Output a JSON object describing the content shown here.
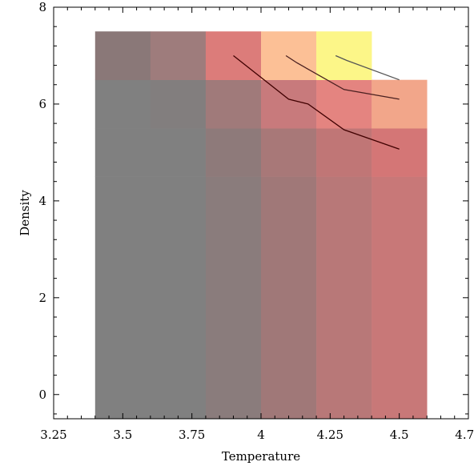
{
  "chart_data": {
    "type": "heatmap",
    "title": "",
    "xlabel": "Temperature",
    "ylabel": "Density",
    "xlim": [
      3.25,
      4.75
    ],
    "ylim": [
      -0.5,
      8
    ],
    "x_ticks": [
      "3.25",
      "3.5",
      "3.75",
      "4",
      "4.25",
      "4.5",
      "4.75"
    ],
    "x_tick_values": [
      3.25,
      3.5,
      3.75,
      4.0,
      4.25,
      4.5,
      4.75
    ],
    "y_ticks": [
      "0",
      "2",
      "4",
      "6",
      "8"
    ],
    "y_tick_values": [
      0,
      2,
      4,
      6,
      8
    ],
    "grid": false,
    "cells": [
      {
        "x0": 3.4,
        "x1": 3.6,
        "y0": -0.5,
        "y1": 4.5,
        "color": "#808080"
      },
      {
        "x0": 3.4,
        "x1": 3.6,
        "y0": 4.5,
        "y1": 5.5,
        "color": "#808080"
      },
      {
        "x0": 3.4,
        "x1": 3.6,
        "y0": 5.5,
        "y1": 6.5,
        "color": "#808080"
      },
      {
        "x0": 3.4,
        "x1": 3.6,
        "y0": 6.5,
        "y1": 7.5,
        "color": "#8a7878"
      },
      {
        "x0": 3.6,
        "x1": 3.8,
        "y0": -0.5,
        "y1": 4.5,
        "color": "#808080"
      },
      {
        "x0": 3.6,
        "x1": 3.8,
        "y0": 4.5,
        "y1": 5.5,
        "color": "#808080"
      },
      {
        "x0": 3.6,
        "x1": 3.8,
        "y0": 5.5,
        "y1": 6.5,
        "color": "#827e7e"
      },
      {
        "x0": 3.6,
        "x1": 3.8,
        "y0": 6.5,
        "y1": 7.5,
        "color": "#9e7c7c"
      },
      {
        "x0": 3.8,
        "x1": 4.0,
        "y0": -0.5,
        "y1": 4.5,
        "color": "#8a7c7c"
      },
      {
        "x0": 3.8,
        "x1": 4.0,
        "y0": 4.5,
        "y1": 5.5,
        "color": "#8e7a7a"
      },
      {
        "x0": 3.8,
        "x1": 4.0,
        "y0": 5.5,
        "y1": 6.5,
        "color": "#a07a7a"
      },
      {
        "x0": 3.8,
        "x1": 4.0,
        "y0": 6.5,
        "y1": 7.5,
        "color": "#dc7c7a"
      },
      {
        "x0": 4.0,
        "x1": 4.2,
        "y0": -0.5,
        "y1": 4.5,
        "color": "#a07878"
      },
      {
        "x0": 4.0,
        "x1": 4.2,
        "y0": 4.5,
        "y1": 5.5,
        "color": "#a87878"
      },
      {
        "x0": 4.0,
        "x1": 4.2,
        "y0": 5.5,
        "y1": 6.5,
        "color": "#c87a7c"
      },
      {
        "x0": 4.0,
        "x1": 4.2,
        "y0": 6.5,
        "y1": 7.5,
        "color": "#fcc096"
      },
      {
        "x0": 4.2,
        "x1": 4.4,
        "y0": -0.5,
        "y1": 4.5,
        "color": "#b87878"
      },
      {
        "x0": 4.2,
        "x1": 4.4,
        "y0": 4.5,
        "y1": 5.5,
        "color": "#c07676"
      },
      {
        "x0": 4.2,
        "x1": 4.4,
        "y0": 5.5,
        "y1": 6.5,
        "color": "#e48480"
      },
      {
        "x0": 4.2,
        "x1": 4.4,
        "y0": 6.5,
        "y1": 7.5,
        "color": "#fcf688"
      },
      {
        "x0": 4.4,
        "x1": 4.6,
        "y0": -0.5,
        "y1": 4.5,
        "color": "#c87878"
      },
      {
        "x0": 4.4,
        "x1": 4.6,
        "y0": 4.5,
        "y1": 5.5,
        "color": "#d47676"
      },
      {
        "x0": 4.4,
        "x1": 4.6,
        "y0": 5.5,
        "y1": 6.5,
        "color": "#f2a68a"
      }
    ],
    "contours": [
      {
        "color": "#400000",
        "points": [
          [
            3.9,
            7.0
          ],
          [
            4.1,
            6.1
          ],
          [
            4.17,
            6.0
          ],
          [
            4.3,
            5.47
          ],
          [
            4.5,
            5.07
          ]
        ]
      },
      {
        "color": "#4a2020",
        "points": [
          [
            4.09,
            7.0
          ],
          [
            4.13,
            6.85
          ],
          [
            4.3,
            6.3
          ],
          [
            4.5,
            6.1
          ]
        ]
      },
      {
        "color": "#555555",
        "points": [
          [
            4.27,
            7.0
          ],
          [
            4.31,
            6.9
          ],
          [
            4.5,
            6.5
          ]
        ]
      }
    ]
  }
}
